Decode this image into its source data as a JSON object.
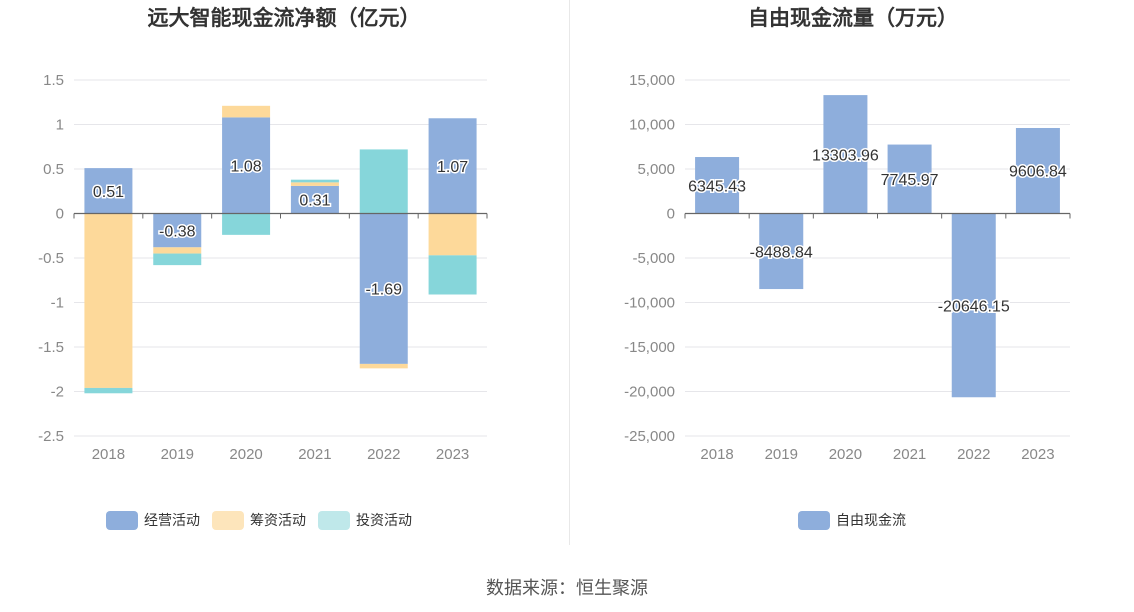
{
  "source_note": "数据来源：恒生聚源",
  "colors": {
    "operating": "#8eaedc",
    "financing": "#fdd99a",
    "investing": "#86d6da",
    "fcf": "#8eaedc",
    "grid": "#e6e6ea",
    "axis": "#666666"
  },
  "chart_data": [
    {
      "type": "bar",
      "stacked": true,
      "title": "远大智能现金流净额（亿元）",
      "categories": [
        "2018",
        "2019",
        "2020",
        "2021",
        "2022",
        "2023"
      ],
      "series": [
        {
          "name": "经营活动",
          "values": [
            0.51,
            -0.38,
            1.08,
            0.31,
            -1.69,
            1.07
          ],
          "labels": [
            "0.51",
            "-0.38",
            "1.08",
            "0.31",
            "-1.69",
            "1.07"
          ]
        },
        {
          "name": "筹资活动",
          "values": [
            -1.96,
            -0.07,
            0.13,
            0.04,
            -0.05,
            -0.47
          ]
        },
        {
          "name": "投资活动",
          "values": [
            -0.06,
            -0.13,
            -0.24,
            0.03,
            0.72,
            -0.44
          ]
        }
      ],
      "ylim": [
        -2.5,
        1.5
      ],
      "yticks": [
        1.5,
        1,
        0.5,
        0,
        -0.5,
        -1,
        -1.5,
        -2,
        -2.5
      ],
      "ytick_labels": [
        "1.5",
        "1",
        "0.5",
        "0",
        "-0.5",
        "-1",
        "-1.5",
        "-2",
        "-2.5"
      ],
      "grid": true,
      "legend_position": "bottom"
    },
    {
      "type": "bar",
      "title": "自由现金流量（万元）",
      "categories": [
        "2018",
        "2019",
        "2020",
        "2021",
        "2022",
        "2023"
      ],
      "series": [
        {
          "name": "自由现金流",
          "values": [
            6345.43,
            -8488.84,
            13303.96,
            7745.97,
            -20646.15,
            9606.84
          ],
          "labels": [
            "6345.43",
            "-8488.84",
            "13303.96",
            "7745.97",
            "-20646.15",
            "9606.84"
          ]
        }
      ],
      "ylim": [
        -25000,
        15000
      ],
      "yticks": [
        15000,
        10000,
        5000,
        0,
        -5000,
        -10000,
        -15000,
        -20000,
        -25000
      ],
      "ytick_labels": [
        "15,000",
        "10,000",
        "5,000",
        "0",
        "-5,000",
        "-10,000",
        "-15,000",
        "-20,000",
        "-25,000"
      ],
      "grid": true,
      "legend_position": "bottom"
    }
  ]
}
